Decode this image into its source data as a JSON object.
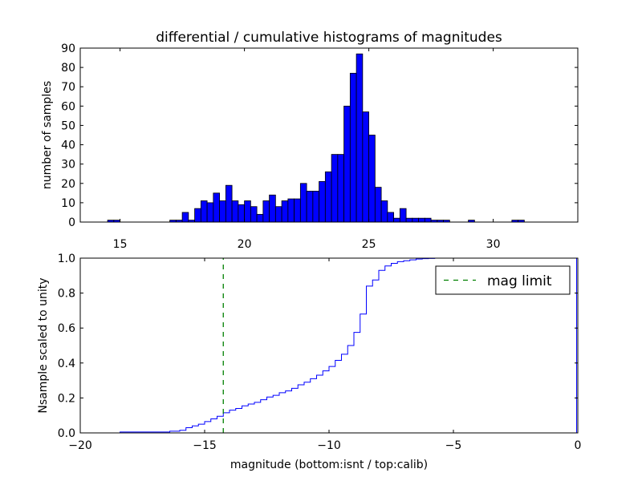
{
  "chart_data": [
    {
      "type": "bar",
      "title": "differential / cumulative histograms of magnitudes",
      "ylabel": "number of samples",
      "xlabel": "",
      "xlim": [
        13.4,
        33.4
      ],
      "ylim": [
        0,
        90
      ],
      "xticks": [
        15,
        20,
        25,
        30
      ],
      "xtick_labels": [
        "15",
        "20",
        "25",
        "30"
      ],
      "yticks": [
        0,
        10,
        20,
        30,
        40,
        50,
        60,
        70,
        80,
        90
      ],
      "ytick_labels": [
        "0",
        "10",
        "20",
        "30",
        "40",
        "50",
        "60",
        "70",
        "80",
        "90"
      ],
      "bar_color": "#0000ff",
      "bin_width": 0.25,
      "bins_start": [
        14.5,
        14.75,
        17.0,
        17.25,
        17.5,
        17.75,
        18.0,
        18.25,
        18.5,
        18.75,
        19.0,
        19.25,
        19.5,
        19.75,
        20.0,
        20.25,
        20.5,
        20.75,
        21.0,
        21.25,
        21.5,
        21.75,
        22.0,
        22.25,
        22.5,
        22.75,
        23.0,
        23.25,
        23.5,
        23.75,
        24.0,
        24.25,
        24.5,
        24.75,
        25.0,
        25.25,
        25.5,
        25.75,
        26.0,
        26.25,
        26.5,
        26.75,
        27.0,
        27.25,
        27.5,
        27.75,
        28.0,
        29.0,
        30.75,
        31.0
      ],
      "counts": [
        1,
        1,
        1,
        1,
        5,
        1,
        7,
        11,
        10,
        15,
        11,
        19,
        11,
        9,
        11,
        8,
        4,
        11,
        14,
        8,
        11,
        12,
        12,
        20,
        16,
        16,
        21,
        26,
        35,
        35,
        60,
        77,
        87,
        57,
        45,
        18,
        11,
        5,
        2,
        7,
        2,
        2,
        2,
        2,
        1,
        1,
        1,
        1,
        1,
        1
      ]
    },
    {
      "type": "line",
      "step": true,
      "xlabel": "magnitude (bottom:isnt / top:calib)",
      "ylabel": "Nsample scaled to unity",
      "xlim": [
        -20,
        0
      ],
      "ylim": [
        0,
        1.0
      ],
      "xticks": [
        -20,
        -15,
        -10,
        -5,
        0
      ],
      "xtick_labels": [
        "−20",
        "−15",
        "−10",
        "−5",
        "0"
      ],
      "yticks": [
        0,
        0.2,
        0.4,
        0.6,
        0.8,
        1.0
      ],
      "ytick_labels": [
        "0.0",
        "0.2",
        "0.4",
        "0.6",
        "0.8",
        "1.0"
      ],
      "series": [
        {
          "name": "cumulative",
          "color": "#0000ff",
          "x": [
            -20,
            -18.6,
            -18.4,
            -16.8,
            -16.4,
            -16.0,
            -15.75,
            -15.5,
            -15.25,
            -15.0,
            -14.75,
            -14.5,
            -14.25,
            -14.0,
            -13.75,
            -13.5,
            -13.25,
            -13.0,
            -12.75,
            -12.5,
            -12.25,
            -12.0,
            -11.75,
            -11.5,
            -11.25,
            -11.0,
            -10.75,
            -10.5,
            -10.25,
            -10.0,
            -9.75,
            -9.5,
            -9.25,
            -9.0,
            -8.75,
            -8.5,
            -8.25,
            -8.0,
            -7.75,
            -7.5,
            -7.25,
            -7.0,
            -6.75,
            -6.5,
            -6.25,
            -6.0,
            -5.75,
            -0.05
          ],
          "y": [
            0.0,
            0.0,
            0.005,
            0.005,
            0.01,
            0.015,
            0.03,
            0.04,
            0.05,
            0.065,
            0.08,
            0.095,
            0.115,
            0.13,
            0.14,
            0.155,
            0.165,
            0.175,
            0.19,
            0.205,
            0.215,
            0.23,
            0.24,
            0.255,
            0.275,
            0.29,
            0.31,
            0.33,
            0.355,
            0.38,
            0.415,
            0.45,
            0.5,
            0.575,
            0.68,
            0.84,
            0.875,
            0.93,
            0.955,
            0.97,
            0.98,
            0.985,
            0.99,
            0.995,
            0.997,
            0.998,
            1.0,
            1.0
          ]
        },
        {
          "name": "mag limit",
          "color": "#008000",
          "dashed": true,
          "x": [
            -14.25,
            -14.25
          ],
          "y": [
            0,
            1.0
          ]
        }
      ],
      "legend": {
        "entries": [
          "mag limit"
        ],
        "position": "top-right"
      }
    }
  ]
}
